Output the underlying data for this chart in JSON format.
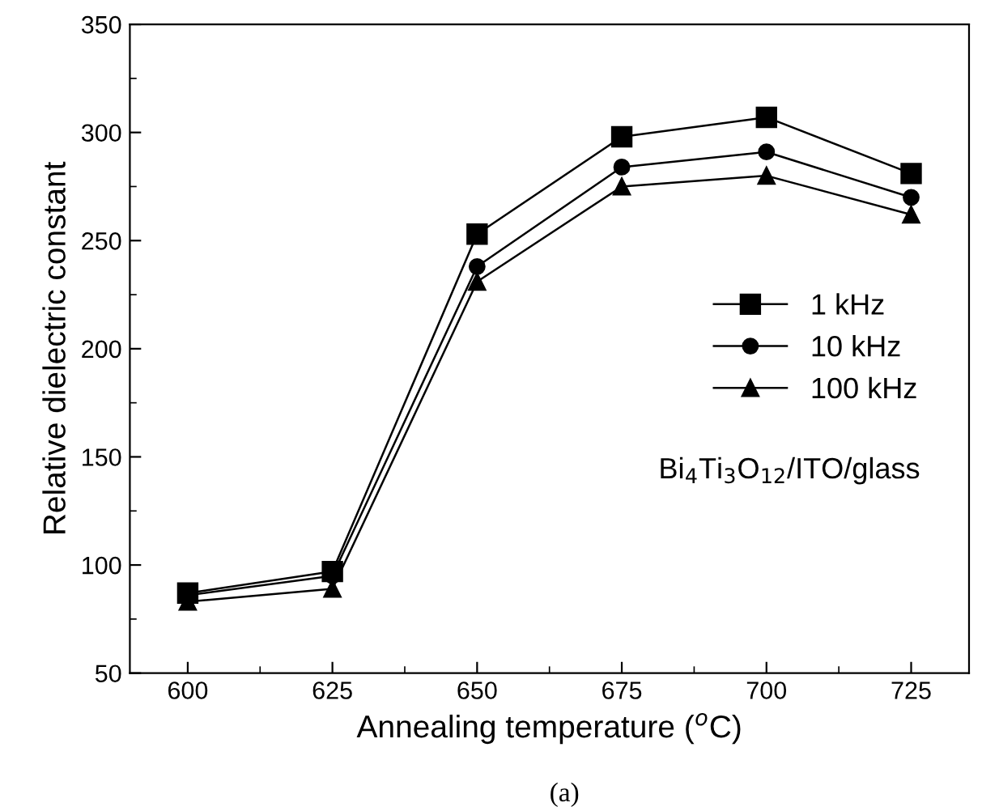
{
  "chart_data": {
    "type": "line",
    "xlabel": "Annealing temperature ($^{o}$C)",
    "ylabel": "Relative dielectric constant",
    "x": [
      600,
      625,
      650,
      675,
      700,
      725
    ],
    "series": [
      {
        "name": "1 kHz",
        "color": "#000000",
        "marker": "square",
        "values": [
          87,
          97,
          253,
          298,
          307,
          281
        ]
      },
      {
        "name": "10 kHz",
        "color": "#000000",
        "marker": "circle",
        "values": [
          86,
          95,
          238,
          284,
          291,
          270
        ]
      },
      {
        "name": "100 kHz",
        "color": "#000000",
        "marker": "triangle",
        "values": [
          83,
          89,
          231,
          275,
          280,
          262
        ]
      }
    ],
    "xlim": [
      590,
      735
    ],
    "xticks": [
      600,
      625,
      650,
      675,
      700,
      725
    ],
    "ylim": [
      50,
      350
    ],
    "yticks": [
      50,
      100,
      150,
      200,
      250,
      300,
      350
    ],
    "grid": false,
    "legend": "right",
    "line_style": "solid",
    "annotations": [
      "Bi$_{4}$Ti$_{3}$O$_{12}$/ITO/glass",
      "(a)"
    ]
  }
}
